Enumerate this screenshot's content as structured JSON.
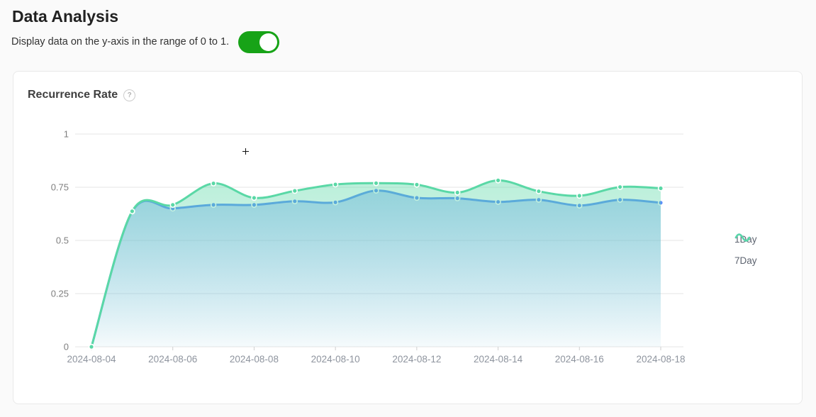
{
  "page": {
    "title": "Data Analysis",
    "toggle_label": "Display data on the y-axis in the range of 0 to 1.",
    "toggle_state": "on"
  },
  "card": {
    "title": "Recurrence Rate",
    "help_glyph": "?"
  },
  "legend": [
    {
      "label": "1Day",
      "color": "#5B8FF9"
    },
    {
      "label": "7Day",
      "color": "#5AD8A6"
    }
  ],
  "colors": {
    "toggle_on": "#17A317",
    "series_1day": "#5B8FF9",
    "series_7day": "#5AD8A6",
    "gridline": "#e6e6e6",
    "axis_label": "#8e949e"
  },
  "chart_data": {
    "type": "line",
    "title": "Recurrence Rate",
    "smooth": true,
    "area": true,
    "grid": true,
    "legend_position": "right",
    "ylim": [
      0,
      1
    ],
    "yticks": [
      0,
      0.25,
      0.5,
      0.75,
      1
    ],
    "x": [
      "2024-08-04",
      "2024-08-05",
      "2024-08-06",
      "2024-08-07",
      "2024-08-08",
      "2024-08-09",
      "2024-08-10",
      "2024-08-11",
      "2024-08-12",
      "2024-08-13",
      "2024-08-14",
      "2024-08-15",
      "2024-08-16",
      "2024-08-17",
      "2024-08-18"
    ],
    "x_tick_labels": [
      "2024-08-04",
      "2024-08-06",
      "2024-08-08",
      "2024-08-10",
      "2024-08-12",
      "2024-08-14",
      "2024-08-16",
      "2024-08-18"
    ],
    "series": [
      {
        "name": "1Day",
        "color": "#5B8FF9",
        "values": [
          0,
          0.635,
          0.65,
          0.667,
          0.667,
          0.684,
          0.679,
          0.734,
          0.7,
          0.698,
          0.681,
          0.691,
          0.664,
          0.691,
          0.677
        ]
      },
      {
        "name": "7Day",
        "color": "#5AD8A6",
        "values": [
          0,
          0.637,
          0.667,
          0.768,
          0.7,
          0.733,
          0.763,
          0.769,
          0.762,
          0.725,
          0.782,
          0.731,
          0.71,
          0.751,
          0.745
        ]
      }
    ]
  }
}
